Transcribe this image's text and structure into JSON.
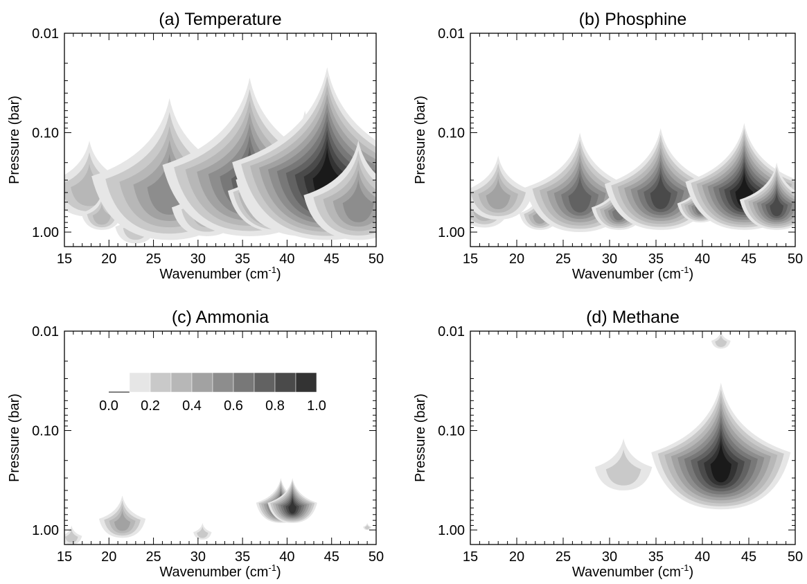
{
  "chart_data": [
    {
      "type": "heatmap",
      "title": "(a) Temperature",
      "xlabel": "Wavenumber (cm",
      "xlabel_sup": "-1",
      "xlabel_close": ")",
      "ylabel": "Pressure (bar)",
      "xlim": [
        15,
        50
      ],
      "ylim": [
        1.4,
        0.01
      ],
      "yscale": "log",
      "xticks": [
        "15",
        "20",
        "25",
        "30",
        "35",
        "40",
        "45",
        "50"
      ],
      "yticks": [
        "0.01",
        "0.10",
        "1.00"
      ],
      "features": [
        {
          "wavenumber": 17.8,
          "peak_value": 0.25,
          "top_pressure": 0.12,
          "bottom_pressure": 0.7
        },
        {
          "wavenumber": 19.2,
          "peak_value": 0.25,
          "top_pressure": 0.4,
          "bottom_pressure": 0.95
        },
        {
          "wavenumber": 23.0,
          "peak_value": 0.2,
          "top_pressure": 0.55,
          "bottom_pressure": 1.3
        },
        {
          "wavenumber": 26.8,
          "peak_value": 0.45,
          "top_pressure": 0.045,
          "bottom_pressure": 1.2
        },
        {
          "wavenumber": 31.0,
          "peak_value": 0.3,
          "top_pressure": 0.25,
          "bottom_pressure": 1.1
        },
        {
          "wavenumber": 35.8,
          "peak_value": 0.65,
          "top_pressure": 0.028,
          "bottom_pressure": 1.1
        },
        {
          "wavenumber": 39.0,
          "peak_value": 0.9,
          "top_pressure": 0.12,
          "bottom_pressure": 1.0
        },
        {
          "wavenumber": 40.5,
          "peak_value": 0.9,
          "top_pressure": 0.12,
          "bottom_pressure": 1.0
        },
        {
          "wavenumber": 42.0,
          "peak_value": 0.5,
          "top_pressure": 0.06,
          "bottom_pressure": 1.1
        },
        {
          "wavenumber": 44.5,
          "peak_value": 0.95,
          "top_pressure": 0.022,
          "bottom_pressure": 1.2
        },
        {
          "wavenumber": 48.0,
          "peak_value": 0.5,
          "top_pressure": 0.12,
          "bottom_pressure": 1.2
        }
      ]
    },
    {
      "type": "heatmap",
      "title": "(b) Phosphine",
      "xlabel": "Wavenumber (cm",
      "xlabel_sup": "-1",
      "xlabel_close": ")",
      "ylabel": "Pressure (bar)",
      "xlim": [
        15,
        50
      ],
      "ylim": [
        1.4,
        0.01
      ],
      "yscale": "log",
      "xticks": [
        "15",
        "20",
        "25",
        "30",
        "35",
        "40",
        "45",
        "50"
      ],
      "yticks": [
        "0.01",
        "0.10",
        "1.00"
      ],
      "features": [
        {
          "wavenumber": 16.5,
          "peak_value": 0.3,
          "top_pressure": 0.3,
          "bottom_pressure": 0.9
        },
        {
          "wavenumber": 18.0,
          "peak_value": 0.4,
          "top_pressure": 0.17,
          "bottom_pressure": 0.75
        },
        {
          "wavenumber": 22.5,
          "peak_value": 0.35,
          "top_pressure": 0.4,
          "bottom_pressure": 0.95
        },
        {
          "wavenumber": 26.8,
          "peak_value": 0.65,
          "top_pressure": 0.1,
          "bottom_pressure": 1.0
        },
        {
          "wavenumber": 31.0,
          "peak_value": 0.55,
          "top_pressure": 0.3,
          "bottom_pressure": 0.95
        },
        {
          "wavenumber": 35.5,
          "peak_value": 0.75,
          "top_pressure": 0.09,
          "bottom_pressure": 0.95
        },
        {
          "wavenumber": 39.8,
          "peak_value": 0.6,
          "top_pressure": 0.3,
          "bottom_pressure": 0.8
        },
        {
          "wavenumber": 44.5,
          "peak_value": 0.95,
          "top_pressure": 0.08,
          "bottom_pressure": 0.95
        },
        {
          "wavenumber": 48.0,
          "peak_value": 0.75,
          "top_pressure": 0.2,
          "bottom_pressure": 0.95
        }
      ]
    },
    {
      "type": "heatmap",
      "title": "(c) Ammonia",
      "xlabel": "Wavenumber (cm",
      "xlabel_sup": "-1",
      "xlabel_close": ")",
      "ylabel": "Pressure (bar)",
      "xlim": [
        15,
        50
      ],
      "ylim": [
        1.4,
        0.01
      ],
      "yscale": "log",
      "xticks": [
        "15",
        "20",
        "25",
        "30",
        "35",
        "40",
        "45",
        "50"
      ],
      "yticks": [
        "0.01",
        "0.10",
        "1.00"
      ],
      "features": [
        {
          "wavenumber": 15.8,
          "peak_value": 0.2,
          "top_pressure": 0.9,
          "bottom_pressure": 1.4
        },
        {
          "wavenumber": 21.5,
          "peak_value": 0.35,
          "top_pressure": 0.45,
          "bottom_pressure": 1.2
        },
        {
          "wavenumber": 30.5,
          "peak_value": 0.2,
          "top_pressure": 0.85,
          "bottom_pressure": 1.25
        },
        {
          "wavenumber": 39.3,
          "peak_value": 0.9,
          "top_pressure": 0.3,
          "bottom_pressure": 0.85
        },
        {
          "wavenumber": 40.6,
          "peak_value": 0.9,
          "top_pressure": 0.3,
          "bottom_pressure": 0.85
        },
        {
          "wavenumber": 49.0,
          "peak_value": 0.2,
          "top_pressure": 0.85,
          "bottom_pressure": 1.0
        }
      ],
      "colorbar": {
        "levels": [
          0.1,
          0.2,
          0.3,
          0.4,
          0.5,
          0.6,
          0.7,
          0.8,
          0.9,
          1.0
        ],
        "tick_labels": [
          "0.0",
          "0.2",
          "0.4",
          "0.6",
          "0.8",
          "1.0"
        ]
      }
    },
    {
      "type": "heatmap",
      "title": "(d) Methane",
      "xlabel": "Wavenumber (cm",
      "xlabel_sup": "-1",
      "xlabel_close": ")",
      "ylabel": "Pressure (bar)",
      "xlim": [
        15,
        50
      ],
      "ylim": [
        1.4,
        0.01
      ],
      "yscale": "log",
      "xticks": [
        "15",
        "20",
        "25",
        "30",
        "35",
        "40",
        "45",
        "50"
      ],
      "yticks": [
        "0.01",
        "0.10",
        "1.00"
      ],
      "features": [
        {
          "wavenumber": 31.5,
          "peak_value": 0.15,
          "top_pressure": 0.12,
          "bottom_pressure": 0.4
        },
        {
          "wavenumber": 42.0,
          "peak_value": 0.95,
          "top_pressure": 0.033,
          "bottom_pressure": 0.62
        },
        {
          "wavenumber": 42.0,
          "peak_value": 0.2,
          "top_pressure": 0.01,
          "bottom_pressure": 0.015
        }
      ]
    }
  ],
  "colors": {
    "levels": [
      "#ffffff",
      "#e6e6e6",
      "#c9c9c9",
      "#b7b7b7",
      "#a2a2a2",
      "#8d8d8d",
      "#787878",
      "#626262",
      "#4a4a4a",
      "#333333",
      "#1a1a1a"
    ]
  }
}
